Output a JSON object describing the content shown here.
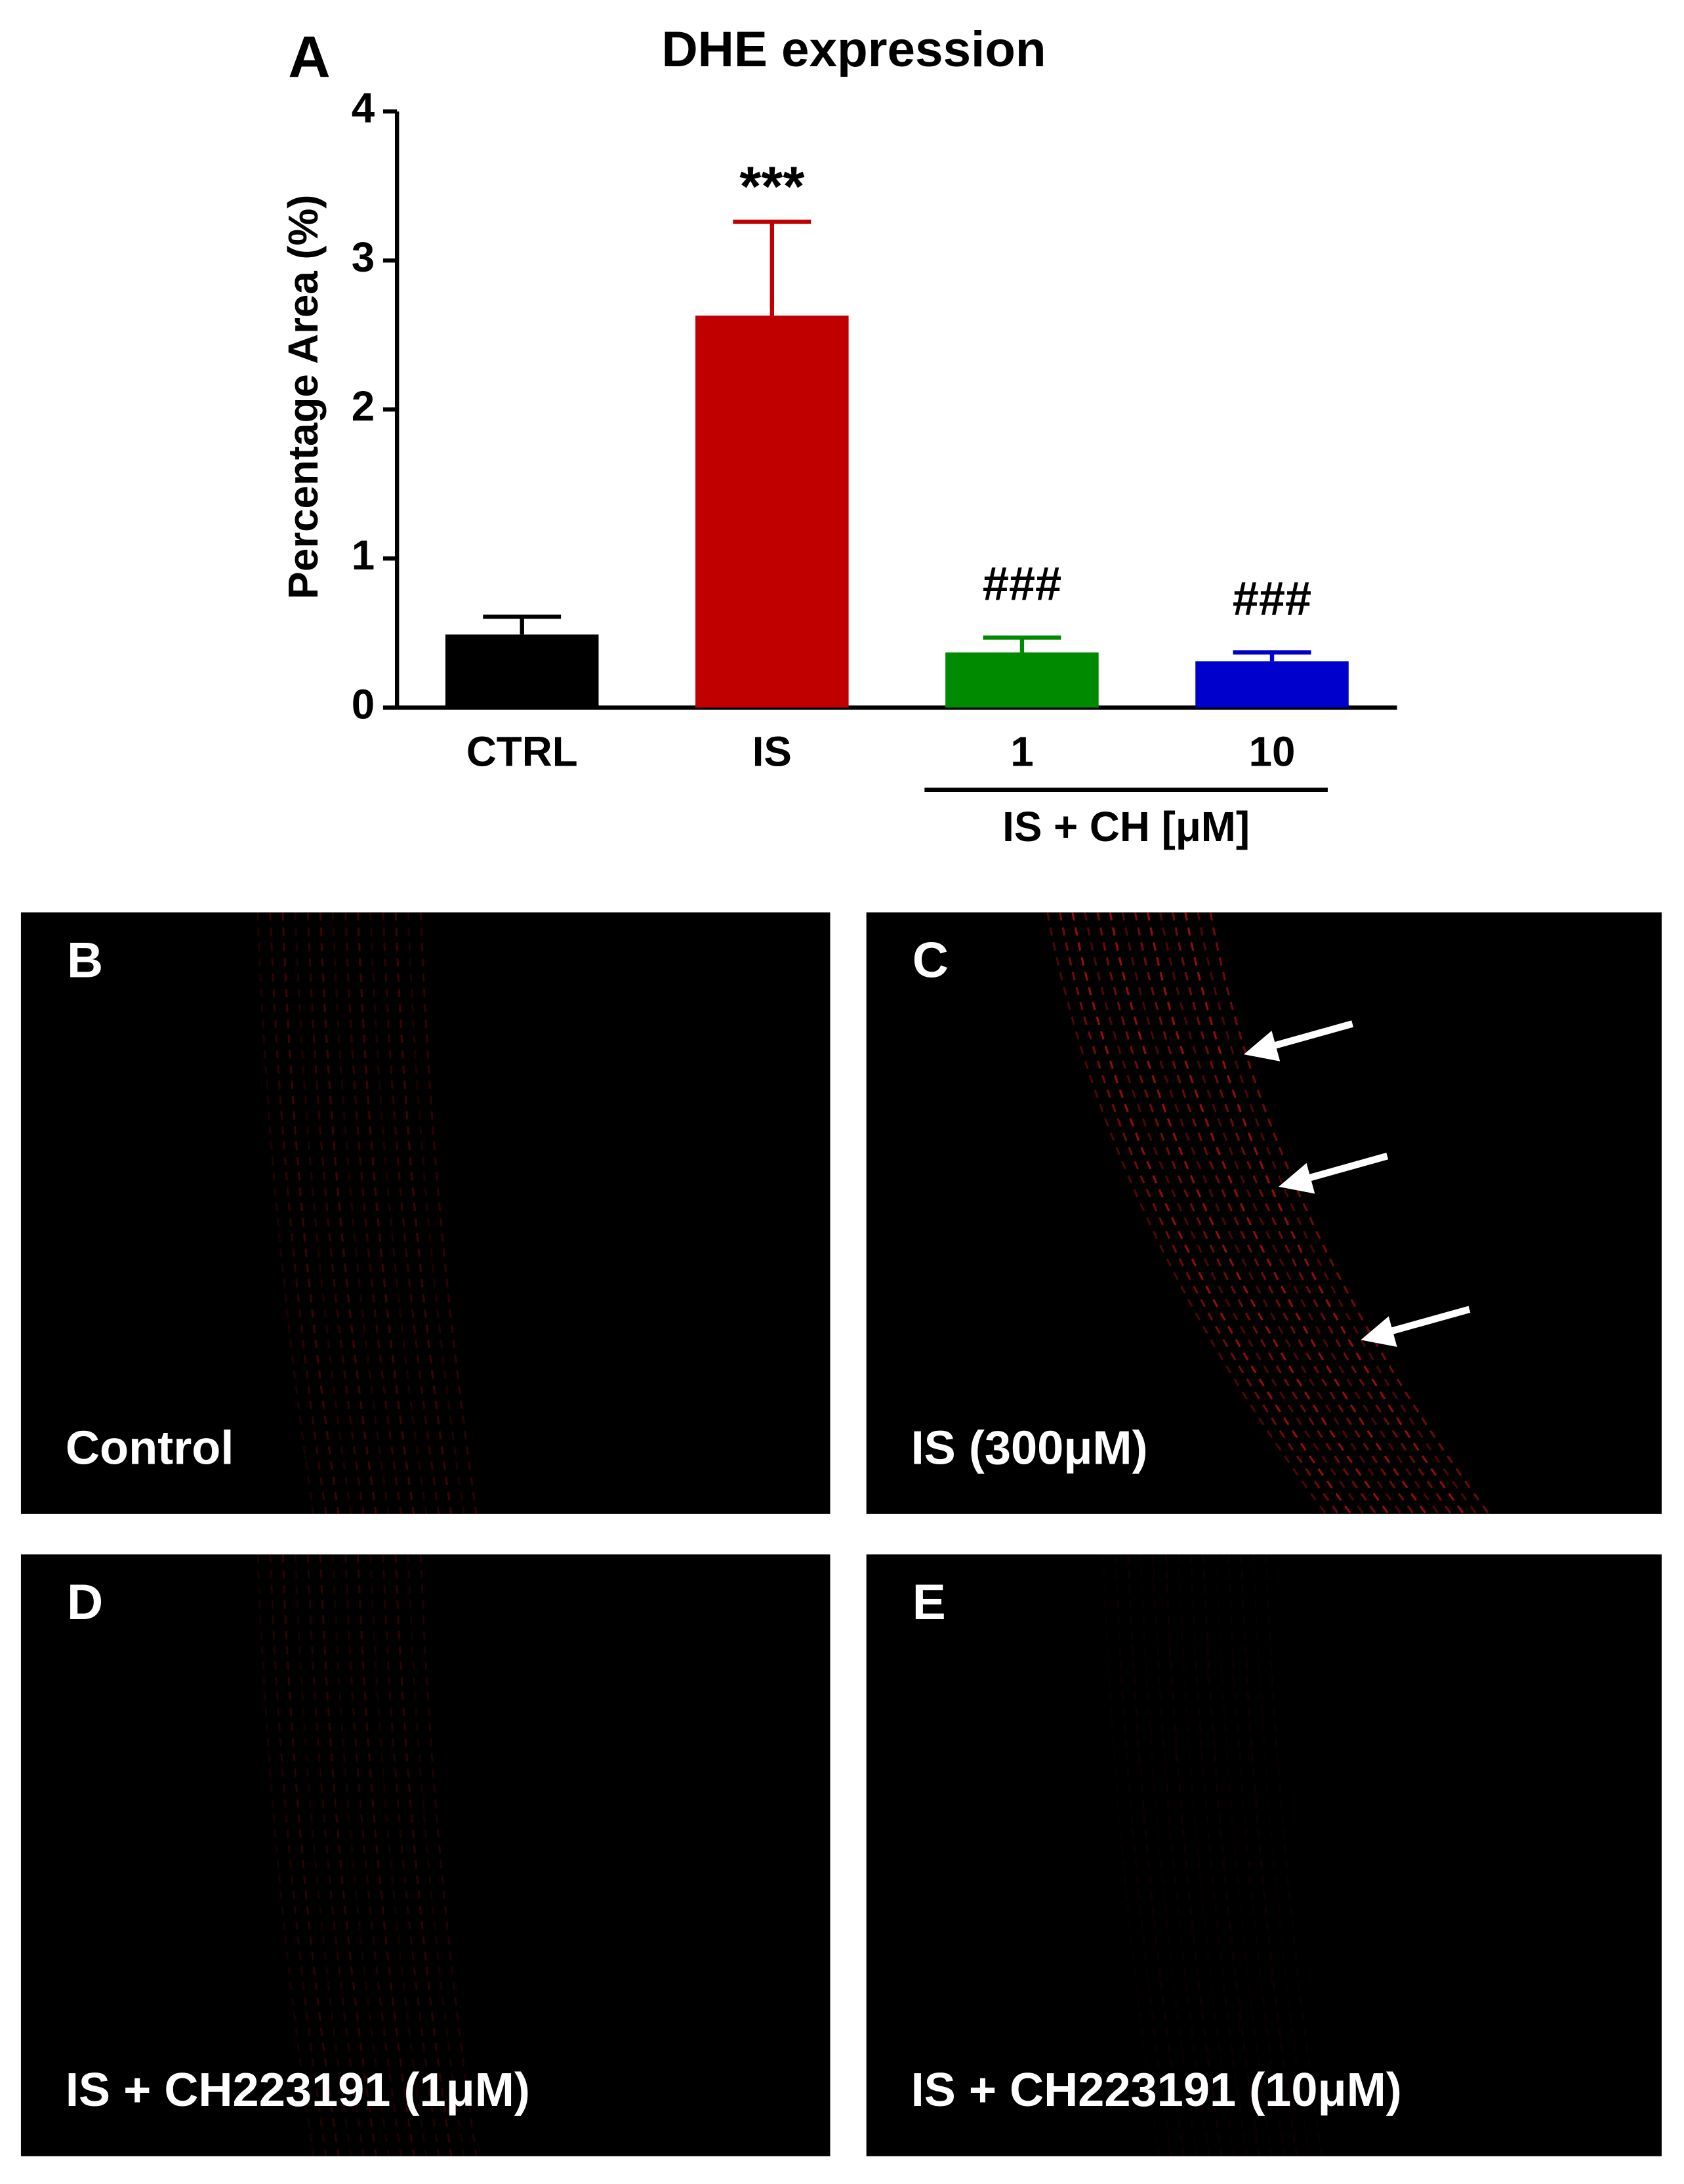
{
  "chart_data": {
    "type": "bar",
    "panel_letter": "A",
    "title": "DHE expression",
    "y_label": "Percentage Area (%)",
    "categories": [
      "CTRL",
      "IS",
      "1",
      "10"
    ],
    "values": [
      0.49,
      2.63,
      0.37,
      0.31
    ],
    "errors": [
      0.12,
      0.63,
      0.1,
      0.06
    ],
    "colors": [
      "#000000",
      "#c00000",
      "#008a00",
      "#0000cc"
    ],
    "annotations": [
      null,
      "***",
      "###",
      "###"
    ],
    "group_label": "IS + CH [μM]",
    "ylim": [
      0,
      4
    ],
    "yticks": [
      0,
      1,
      2,
      3,
      4
    ],
    "grid": false
  },
  "panels": [
    {
      "letter": "B",
      "caption": "Control"
    },
    {
      "letter": "C",
      "caption": "IS (300μM)"
    },
    {
      "letter": "D",
      "caption": "IS + CH223191 (1μM)"
    },
    {
      "letter": "E",
      "caption": "IS + CH223191 (10μM)"
    }
  ]
}
